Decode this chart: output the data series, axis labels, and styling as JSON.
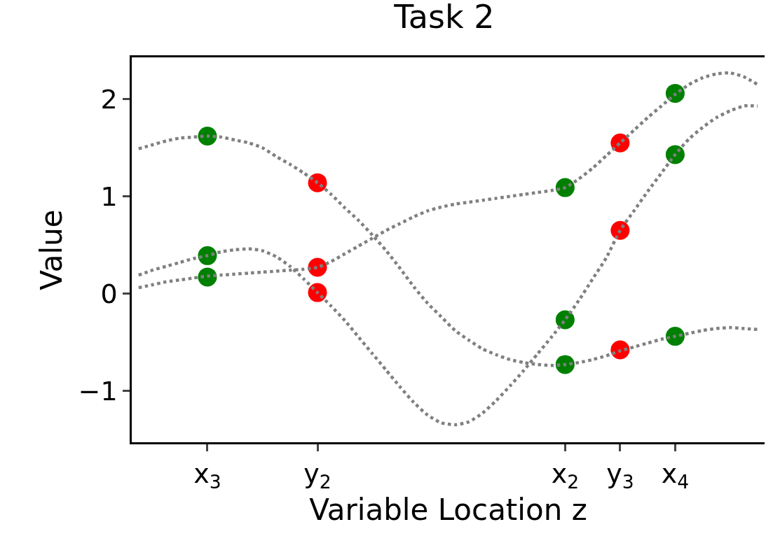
{
  "chart_data": {
    "type": "line",
    "title": "Task 2",
    "xlabel": "Variable Location z",
    "ylabel": "Value",
    "categories": [
      null,
      null,
      null,
      null,
      null,
      "x$_{3}$",
      null,
      null,
      null,
      null,
      null,
      null,
      null,
      "y$_{2}$",
      null,
      null,
      null,
      null,
      null,
      null,
      null,
      null,
      null,
      null,
      null,
      null,
      null,
      null,
      null,
      null,
      null,
      "x$_{2}$",
      null,
      null,
      null,
      "y$_{3}$",
      null,
      null,
      null,
      "x$_{4}$",
      null,
      null,
      null,
      null,
      null,
      null
    ],
    "ylim": [
      -1.53,
      2.43
    ],
    "yticks": [
      {
        "value": -1,
        "label": "−1"
      },
      0,
      1,
      2
    ],
    "series": [
      {
        "type": "scatter",
        "color": "#008000",
        "marker": "circle",
        "x": [
          "x$_{3}$",
          "x$_{3}$",
          "x$_{3}$",
          "x$_{2}$",
          "x$_{2}$",
          "x$_{2}$",
          "x$_{4}$",
          "x$_{4}$",
          "x$_{4}$"
        ],
        "values": [
          1.62,
          0.39,
          0.17,
          1.09,
          -0.27,
          -0.73,
          2.06,
          1.43,
          -0.44
        ]
      },
      {
        "type": "scatter",
        "color": "#ff0000",
        "marker": "circle",
        "x": [
          "y$_{2}$",
          "y$_{2}$",
          "y$_{2}$",
          "y$_{3}$",
          "y$_{3}$",
          "y$_{3}$"
        ],
        "values": [
          1.14,
          0.27,
          0.01,
          1.55,
          0.65,
          -0.58
        ]
      },
      {
        "color": "#808080",
        "marker": "none",
        "line_style": "dotted",
        "values": [
          1.49,
          1.53,
          1.57,
          1.6,
          1.61,
          1.62,
          1.61,
          1.58,
          1.55,
          1.5,
          1.41,
          1.33,
          1.24,
          1.14,
          1.02,
          0.88,
          0.75,
          0.6,
          0.44,
          0.26,
          0.07,
          -0.1,
          -0.24,
          -0.38,
          -0.48,
          -0.57,
          -0.63,
          -0.68,
          -0.71,
          -0.73,
          -0.74,
          -0.73,
          -0.71,
          -0.68,
          -0.64,
          -0.59,
          -0.55,
          -0.51,
          -0.47,
          -0.44,
          -0.41,
          -0.38,
          -0.36,
          -0.35,
          -0.36,
          -0.37
        ]
      },
      {
        "color": "#808080",
        "marker": "none",
        "line_style": "dotted",
        "values": [
          0.19,
          0.24,
          0.28,
          0.32,
          0.36,
          0.39,
          0.43,
          0.45,
          0.46,
          0.44,
          0.38,
          0.28,
          0.15,
          0.01,
          -0.13,
          -0.28,
          -0.45,
          -0.62,
          -0.79,
          -0.96,
          -1.12,
          -1.25,
          -1.33,
          -1.35,
          -1.32,
          -1.23,
          -1.1,
          -0.95,
          -0.79,
          -0.62,
          -0.45,
          -0.27,
          -0.07,
          0.15,
          0.37,
          0.65,
          0.85,
          1.05,
          1.24,
          1.43,
          1.59,
          1.71,
          1.81,
          1.88,
          1.93,
          1.93
        ]
      },
      {
        "color": "#808080",
        "marker": "none",
        "line_style": "dotted",
        "values": [
          0.06,
          0.09,
          0.12,
          0.14,
          0.16,
          0.18,
          0.19,
          0.2,
          0.21,
          0.22,
          0.23,
          0.24,
          0.25,
          0.27,
          0.33,
          0.41,
          0.49,
          0.57,
          0.65,
          0.72,
          0.79,
          0.85,
          0.89,
          0.92,
          0.94,
          0.96,
          0.98,
          1.0,
          1.02,
          1.04,
          1.06,
          1.09,
          1.18,
          1.29,
          1.42,
          1.55,
          1.68,
          1.81,
          1.93,
          2.05,
          2.15,
          2.22,
          2.26,
          2.27,
          2.23,
          2.15
        ]
      }
    ]
  }
}
